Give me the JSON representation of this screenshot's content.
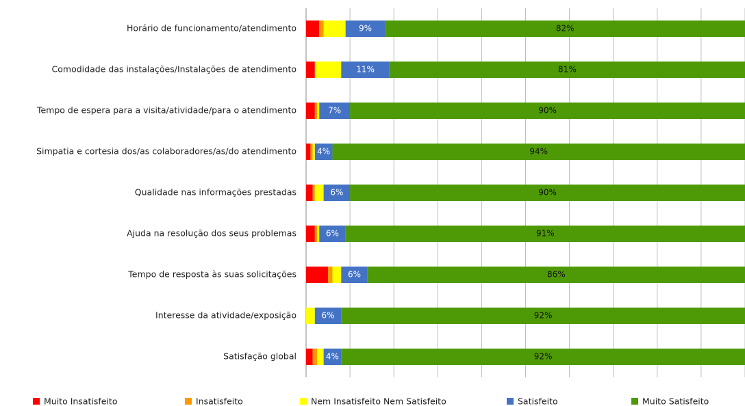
{
  "chart_data": {
    "type": "stacked_barh",
    "categories": [
      "Horário de funcionamento/atendimento",
      "Comodidade das instalações/Instalações de atendimento",
      "Tempo de espera para a visita/atividade/para o atendimento",
      "Simpatia e cortesia dos/as colaboradores/as/do atendimento",
      "Qualidade nas informações  prestadas",
      "Ajuda na resolução dos seus problemas",
      "Tempo de resposta às suas solicitações",
      "Interesse da atividade/exposição",
      "Satisfação global"
    ],
    "series": [
      {
        "name": "Muito Insatisfeito",
        "color": "#ff0000",
        "values": [
          3,
          2,
          2,
          1,
          1.5,
          2,
          5,
          0,
          1.5
        ]
      },
      {
        "name": "Insatisfeito",
        "color": "#ff9900",
        "values": [
          1,
          0,
          0.5,
          0.5,
          0.5,
          0.5,
          1,
          0,
          1
        ]
      },
      {
        "name": "Nem Insatisfeito Nem Satisfeito",
        "color": "#ffff00",
        "values": [
          5,
          6,
          0.5,
          0.5,
          2,
          0.5,
          2,
          2,
          1.5
        ]
      },
      {
        "name": "Satisfeito",
        "color": "#4472c4",
        "values": [
          9,
          11,
          7,
          4,
          6,
          6,
          6,
          6,
          4
        ],
        "value_labels": [
          "9%",
          "11%",
          "7%",
          "4%",
          "6%",
          "6%",
          "6%",
          "6%",
          "4%"
        ]
      },
      {
        "name": "Muito Satisfeito",
        "color": "#4e9a06",
        "values": [
          82,
          81,
          90,
          94,
          90,
          91,
          86,
          92,
          92
        ],
        "value_labels": [
          "82%",
          "81%",
          "90%",
          "94%",
          "90%",
          "91%",
          "86%",
          "92%",
          "92%"
        ]
      }
    ],
    "xlim": [
      0,
      100
    ],
    "xticks": [
      0,
      10,
      20,
      30,
      40,
      50,
      60,
      70,
      80,
      90,
      100
    ],
    "grid": true,
    "legend": "bottom"
  }
}
